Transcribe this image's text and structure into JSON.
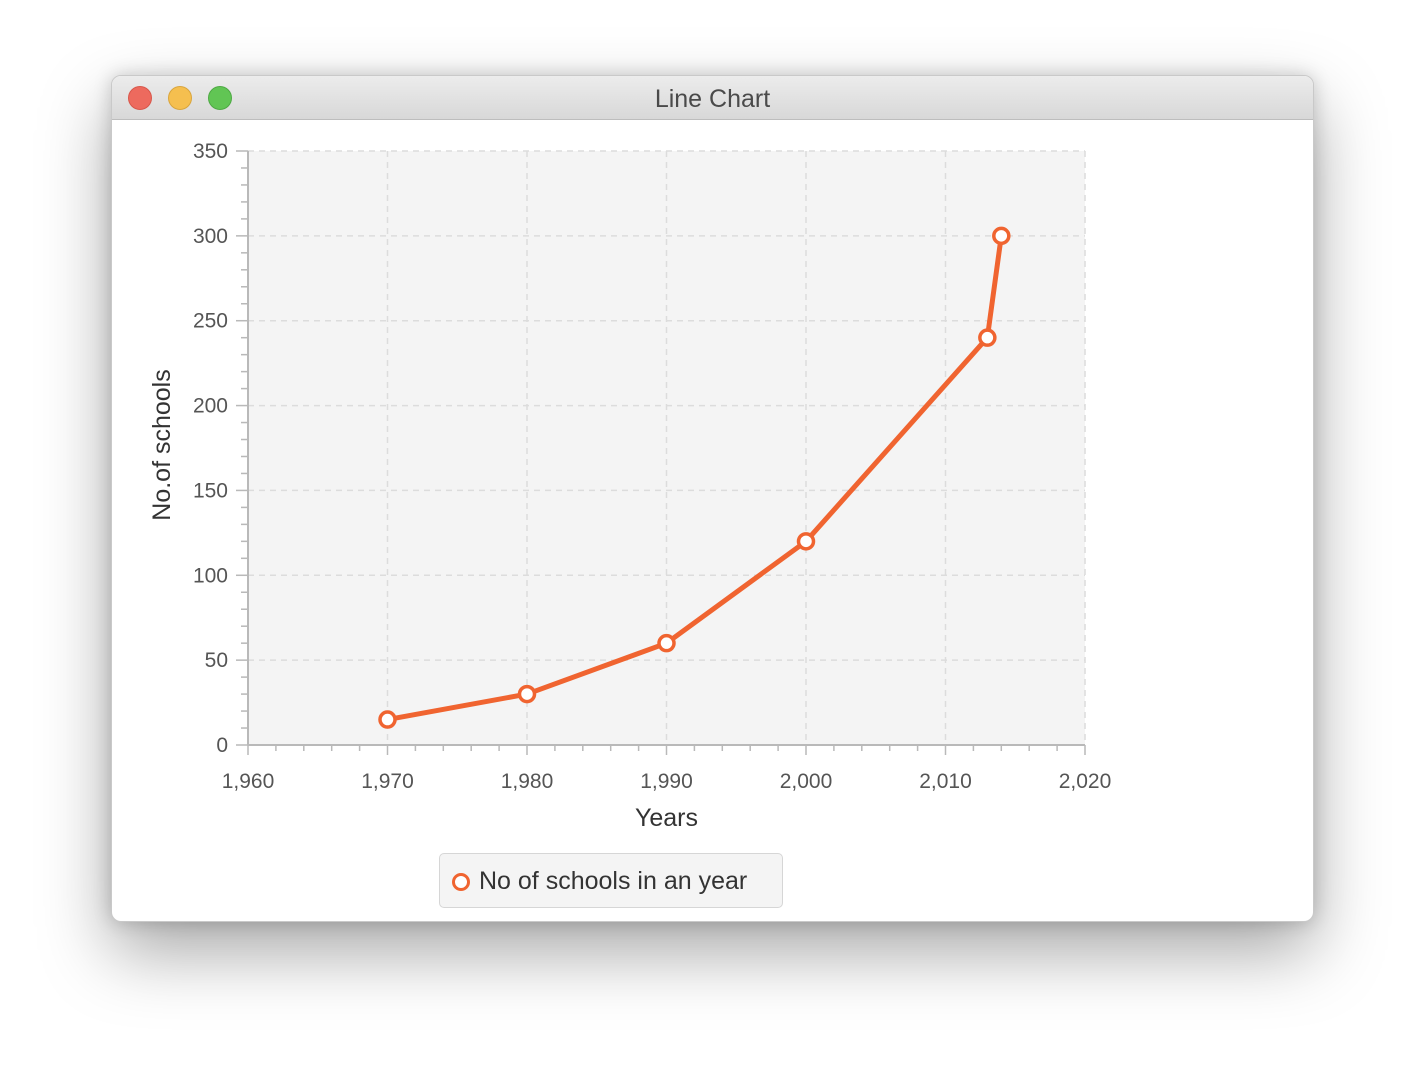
{
  "window": {
    "title": "Line Chart",
    "buttons": {
      "close": "close",
      "minimize": "minimize",
      "maximize": "maximize"
    }
  },
  "colors": {
    "series": "#f06430",
    "plot_background": "#f4f4f4",
    "grid": "#dcdcdc",
    "axis": "#b9b9b9",
    "tick_label": "#555555",
    "axis_label": "#333333"
  },
  "chart_data": {
    "type": "line",
    "title": "",
    "xlabel": "Years",
    "ylabel": "No.of schools",
    "xlim": [
      1960,
      2020
    ],
    "ylim": [
      0,
      350
    ],
    "x_ticks": [
      1960,
      1970,
      1980,
      1990,
      2000,
      2010,
      2020
    ],
    "x_tick_labels": [
      "1,960",
      "1,970",
      "1,980",
      "1,990",
      "2,000",
      "2,010",
      "2,020"
    ],
    "y_ticks": [
      0,
      50,
      100,
      150,
      200,
      250,
      300,
      350
    ],
    "y_tick_labels": [
      "0",
      "50",
      "100",
      "150",
      "200",
      "250",
      "300",
      "350"
    ],
    "grid": true,
    "legend_position": "bottom",
    "series": [
      {
        "name": "No of schools in an year",
        "x": [
          1970,
          1980,
          1990,
          2000,
          2013,
          2014
        ],
        "y": [
          15,
          30,
          60,
          120,
          240,
          300
        ]
      }
    ]
  }
}
